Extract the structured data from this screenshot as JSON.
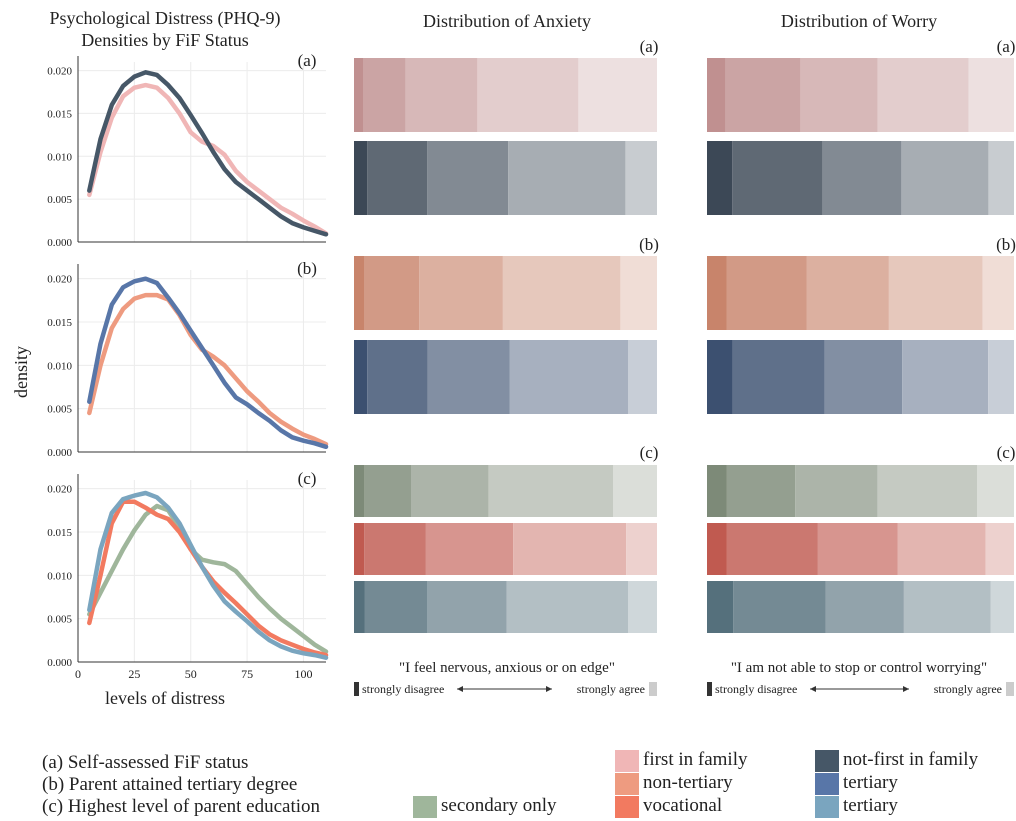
{
  "density_panel": {
    "title_line1": "Psychological Distress (PHQ-9)",
    "title_line2": "Densities by FiF Status",
    "ylabel": "density",
    "xlabel": "levels of distress",
    "x_ticks": [
      "0",
      "25",
      "50",
      "75",
      "100"
    ],
    "y_ticks": [
      "0.000",
      "0.005",
      "0.010",
      "0.015",
      "0.020"
    ]
  },
  "anxiety_title": "Distribution of Anxiety",
  "worry_title": "Distribution of Worry",
  "anxiety_statement": "\"I feel nervous, anxious or on edge\"",
  "worry_statement": "\"I am not able to stop or control worrying\"",
  "scale_left": "strongly disagree",
  "scale_right": "strongly agree",
  "legend": {
    "a": "(a) Self-assessed FiF status",
    "b": "(b) Parent attained tertiary degree",
    "c": "(c) Highest level of parent education",
    "entries": [
      {
        "label": "first in family",
        "color": "#f0b6b6"
      },
      {
        "label": "not-first in family",
        "color": "#465767"
      },
      {
        "label": "non-tertiary",
        "color": "#ee9b80"
      },
      {
        "label": "tertiary",
        "color": "#5876a8"
      },
      {
        "label": "vocational",
        "color": "#f27a60"
      },
      {
        "label": "tertiary",
        "color": "#7aa5bf"
      },
      {
        "label": "secondary only",
        "color": "#9fb69b"
      }
    ]
  },
  "chart_data": [
    {
      "type": "line",
      "panel": "(a)",
      "x": [
        5,
        10,
        15,
        20,
        25,
        30,
        35,
        40,
        45,
        50,
        55,
        60,
        65,
        70,
        75,
        80,
        85,
        90,
        95,
        100,
        105,
        110
      ],
      "xlim": [
        0,
        110
      ],
      "ylim": [
        0,
        0.021
      ],
      "series": [
        {
          "name": "first in family",
          "color": "#f0b6b6",
          "values": [
            0.0055,
            0.0105,
            0.0145,
            0.017,
            0.018,
            0.0183,
            0.018,
            0.0168,
            0.015,
            0.0128,
            0.0117,
            0.0112,
            0.0102,
            0.0083,
            0.007,
            0.006,
            0.005,
            0.004,
            0.0033,
            0.0025,
            0.0018,
            0.001
          ]
        },
        {
          "name": "not-first in family",
          "color": "#465767",
          "values": [
            0.006,
            0.012,
            0.016,
            0.0182,
            0.0193,
            0.0198,
            0.0195,
            0.0183,
            0.0168,
            0.0148,
            0.0127,
            0.0105,
            0.0085,
            0.007,
            0.006,
            0.005,
            0.004,
            0.003,
            0.0022,
            0.0017,
            0.0013,
            0.0009
          ]
        }
      ]
    },
    {
      "type": "line",
      "panel": "(b)",
      "x": [
        5,
        10,
        15,
        20,
        25,
        30,
        35,
        40,
        45,
        50,
        55,
        60,
        65,
        70,
        75,
        80,
        85,
        90,
        95,
        100,
        105,
        110
      ],
      "xlim": [
        0,
        110
      ],
      "ylim": [
        0,
        0.021
      ],
      "series": [
        {
          "name": "non-tertiary",
          "color": "#ee9b80",
          "values": [
            0.0045,
            0.01,
            0.0143,
            0.0165,
            0.0177,
            0.0181,
            0.0181,
            0.0176,
            0.0158,
            0.0135,
            0.0118,
            0.011,
            0.01,
            0.0085,
            0.007,
            0.0058,
            0.0045,
            0.0035,
            0.0027,
            0.002,
            0.0015,
            0.0009
          ]
        },
        {
          "name": "tertiary",
          "color": "#5876a8",
          "values": [
            0.0058,
            0.0125,
            0.017,
            0.019,
            0.0197,
            0.02,
            0.0195,
            0.0178,
            0.016,
            0.014,
            0.012,
            0.01,
            0.008,
            0.0063,
            0.0055,
            0.0045,
            0.0036,
            0.0025,
            0.0017,
            0.0013,
            0.001,
            0.0006
          ]
        }
      ]
    },
    {
      "type": "line",
      "panel": "(c)",
      "x": [
        5,
        10,
        15,
        20,
        25,
        30,
        35,
        40,
        45,
        50,
        55,
        60,
        65,
        70,
        75,
        80,
        85,
        90,
        95,
        100,
        105,
        110
      ],
      "xlim": [
        0,
        110
      ],
      "ylim": [
        0,
        0.021
      ],
      "series": [
        {
          "name": "secondary only",
          "color": "#9fb69b",
          "values": [
            0.0055,
            0.008,
            0.0105,
            0.013,
            0.0152,
            0.017,
            0.018,
            0.0175,
            0.0155,
            0.013,
            0.0118,
            0.0115,
            0.0113,
            0.0105,
            0.009,
            0.0075,
            0.0062,
            0.005,
            0.004,
            0.003,
            0.002,
            0.0012
          ]
        },
        {
          "name": "vocational",
          "color": "#f27a60",
          "values": [
            0.0045,
            0.01,
            0.016,
            0.0185,
            0.0185,
            0.0178,
            0.017,
            0.0165,
            0.015,
            0.013,
            0.011,
            0.0093,
            0.008,
            0.0068,
            0.0055,
            0.0042,
            0.0032,
            0.0025,
            0.002,
            0.0015,
            0.0011,
            0.0008
          ]
        },
        {
          "name": "tertiary",
          "color": "#7aa5bf",
          "values": [
            0.006,
            0.013,
            0.0172,
            0.0188,
            0.0192,
            0.0195,
            0.019,
            0.0178,
            0.016,
            0.0135,
            0.011,
            0.0088,
            0.007,
            0.0058,
            0.0047,
            0.0035,
            0.0025,
            0.0018,
            0.0013,
            0.001,
            0.0008,
            0.0005
          ]
        }
      ]
    },
    {
      "type": "bar",
      "stacked": "100%",
      "title": "Distribution of Anxiety",
      "groups": [
        {
          "panel": "(a)",
          "rows": [
            {
              "color": "#c09090",
              "values": [
                4,
                19,
                32,
                45,
                35
              ]
            },
            {
              "color": "#3c4856",
              "values": [
                5,
                23,
                31,
                45,
                12
              ]
            }
          ]
        },
        {
          "panel": "(b)",
          "rows": [
            {
              "color": "#c8846b",
              "values": [
                4,
                21,
                32,
                45,
                14
              ]
            },
            {
              "color": "#3c5070",
              "values": [
                5,
                23,
                31,
                45,
                11
              ]
            }
          ]
        },
        {
          "panel": "(c)",
          "rows": [
            {
              "color": "#7d8a78",
              "values": [
                4,
                18,
                30,
                48,
                17
              ]
            },
            {
              "color": "#c05a50",
              "values": [
                4,
                24,
                34,
                44,
                12
              ]
            },
            {
              "color": "#55707c",
              "values": [
                4,
                24,
                30,
                46,
                11
              ]
            }
          ]
        }
      ]
    },
    {
      "type": "bar",
      "stacked": "100%",
      "title": "Distribution of Worry",
      "groups": [
        {
          "panel": "(a)",
          "rows": [
            {
              "color": "#c09090",
              "values": [
                7,
                28,
                29,
                34,
                17
              ]
            },
            {
              "color": "#3c4856",
              "values": [
                9,
                32,
                28,
                31,
                9
              ]
            }
          ]
        },
        {
          "panel": "(b)",
          "rows": [
            {
              "color": "#c8846b",
              "values": [
                7,
                28,
                29,
                33,
                11
              ]
            },
            {
              "color": "#3c5070",
              "values": [
                9,
                32,
                27,
                30,
                9
              ]
            }
          ]
        },
        {
          "panel": "(c)",
          "rows": [
            {
              "color": "#7d8a78",
              "values": [
                7,
                24,
                29,
                35,
                13
              ]
            },
            {
              "color": "#c05a50",
              "values": [
                7,
                32,
                28,
                31,
                10
              ]
            },
            {
              "color": "#55707c",
              "values": [
                9,
                32,
                27,
                30,
                8
              ]
            }
          ]
        }
      ]
    }
  ]
}
